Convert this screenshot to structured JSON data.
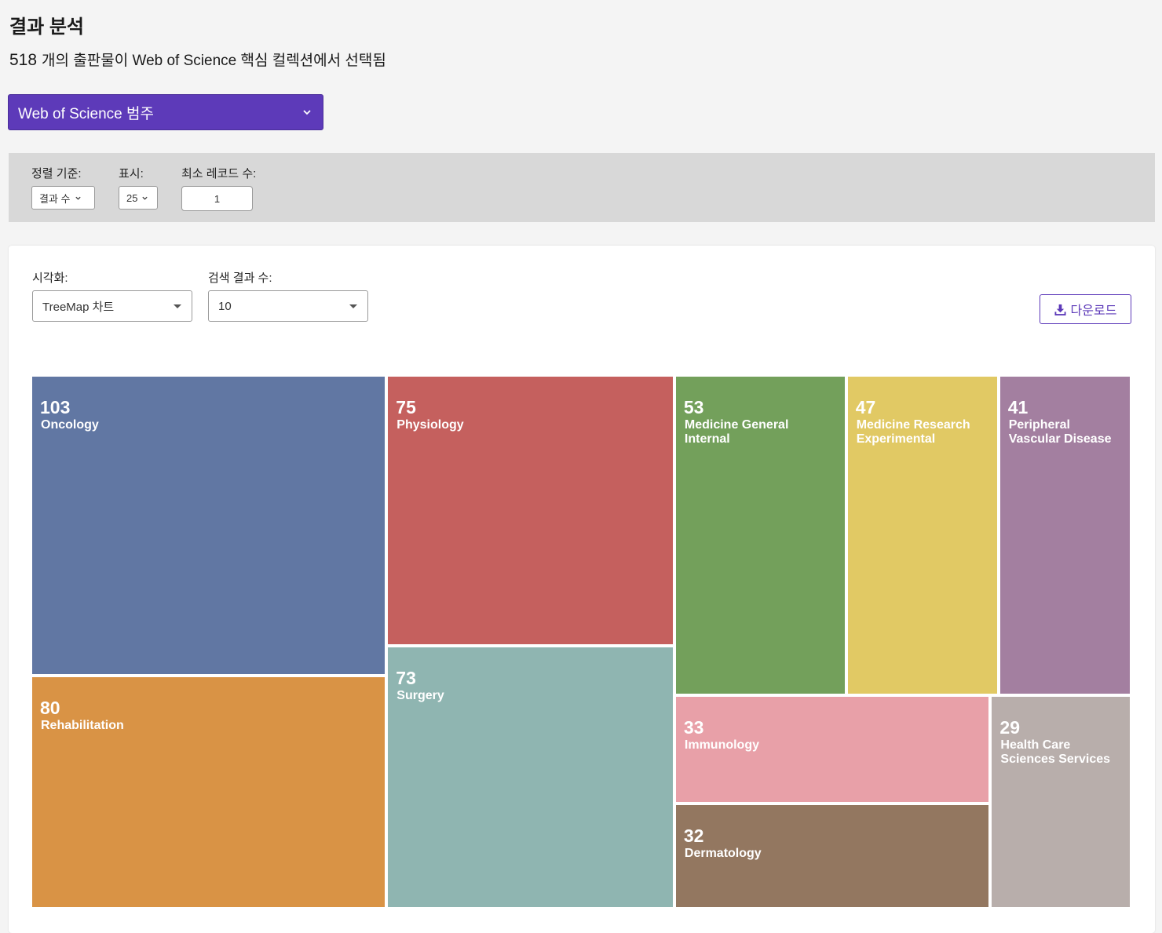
{
  "header": {
    "title": "결과 분석",
    "count": "518",
    "subtitle_text": "개의 출판물이 Web of Science 핵심 컬렉션에서 선택됨"
  },
  "category_select": {
    "label": "Web of Science 범주"
  },
  "filters": {
    "sort_label": "정렬 기준:",
    "sort_value": "결과 수",
    "show_label": "표시:",
    "show_value": "25",
    "min_records_label": "최소 레코드 수:",
    "min_records_value": "1"
  },
  "panel": {
    "visualization_label": "시각화:",
    "visualization_value": "TreeMap 차트",
    "results_label": "검색 결과 수:",
    "results_value": "10",
    "download_label": "다운로드"
  },
  "chart_data": {
    "type": "treemap",
    "items": [
      {
        "label": "Oncology",
        "value": 103,
        "color": "#6177a3"
      },
      {
        "label": "Rehabilitation",
        "value": 80,
        "color": "#d99345"
      },
      {
        "label": "Physiology",
        "value": 75,
        "color": "#c5605e"
      },
      {
        "label": "Surgery",
        "value": 73,
        "color": "#8fb5b1"
      },
      {
        "label": "Medicine General Internal",
        "value": 53,
        "color": "#73a05b"
      },
      {
        "label": "Medicine Research Experimental",
        "value": 47,
        "color": "#e1c964"
      },
      {
        "label": "Peripheral Vascular Disease",
        "value": 41,
        "color": "#a37fa0"
      },
      {
        "label": "Immunology",
        "value": 33,
        "color": "#e8a0a8"
      },
      {
        "label": "Dermatology",
        "value": 32,
        "color": "#937760"
      },
      {
        "label": "Health Care Sciences Services",
        "value": 29,
        "color": "#b8aeab"
      }
    ]
  }
}
